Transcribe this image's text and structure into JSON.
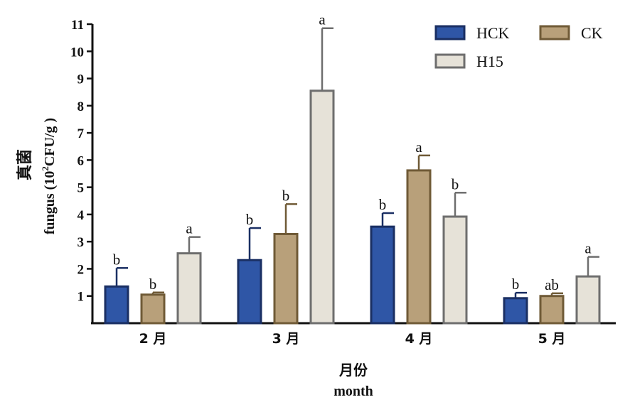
{
  "chart_data": {
    "type": "bar",
    "categories": [
      "2 月",
      "3 月",
      "4 月",
      "5 月"
    ],
    "series": [
      {
        "name": "HCK",
        "color": "#2f56a6",
        "edge": "#1a2f63",
        "values": [
          1.35,
          2.32,
          3.55,
          0.92
        ],
        "errors": [
          0.68,
          1.18,
          0.5,
          0.2
        ],
        "letters": [
          "b",
          "b",
          "b",
          "b"
        ]
      },
      {
        "name": "CK",
        "color": "#b8a07a",
        "edge": "#6f5a36",
        "values": [
          1.05,
          3.28,
          5.62,
          1.0
        ],
        "errors": [
          0.08,
          1.1,
          0.55,
          0.1
        ],
        "letters": [
          "b",
          "b",
          "a",
          "ab"
        ]
      },
      {
        "name": "H15",
        "color": "#e6e2d8",
        "edge": "#6e6e6e",
        "values": [
          2.57,
          8.55,
          3.92,
          1.72
        ],
        "errors": [
          0.6,
          2.3,
          0.88,
          0.72
        ],
        "letters": [
          "a",
          "a",
          "b",
          "a"
        ]
      }
    ],
    "ylabel_cn": "真菌",
    "ylabel_en": "fungus (10",
    "ylabel_sup": "2",
    "ylabel_en_tail": "CFU/g )",
    "xlabel_cn": "月份",
    "xlabel_en": "month",
    "ylim": [
      0,
      11
    ],
    "yticks": [
      "1",
      "2",
      "3",
      "4",
      "5",
      "6",
      "7",
      "8",
      "9",
      "10",
      "11"
    ],
    "legend": "top-right",
    "grid": false
  }
}
